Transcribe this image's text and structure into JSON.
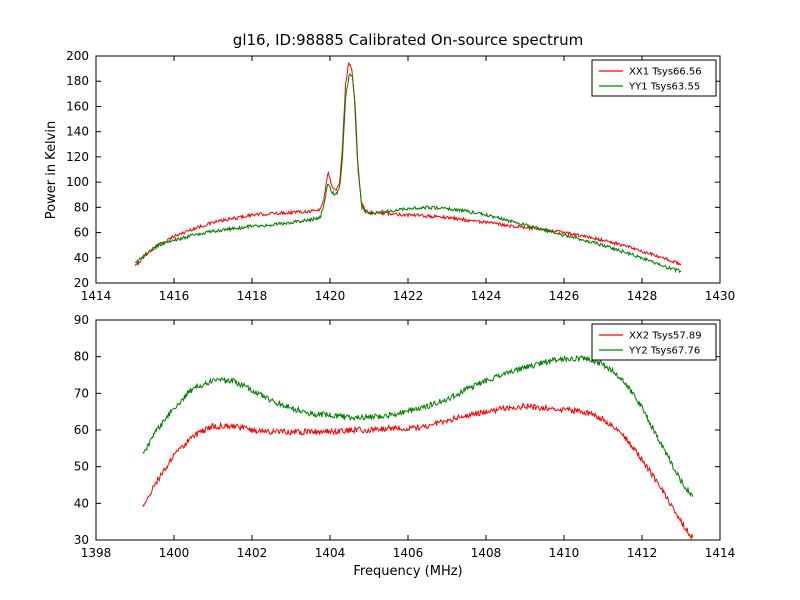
{
  "title": "gl16, ID:98885 Calibrated On-source spectrum",
  "colors": {
    "background": "#ffffff",
    "axis": "#000000",
    "series_red": "#ff0000",
    "series_green": "#008000"
  },
  "chart_data": [
    {
      "type": "line",
      "title": "gl16, ID:98885 Calibrated On-source spectrum",
      "xlabel": "",
      "ylabel": "Power in Kelvin",
      "xlim": [
        1414,
        1430
      ],
      "ylim": [
        20,
        200
      ],
      "xticks": [
        1414,
        1416,
        1418,
        1420,
        1422,
        1424,
        1426,
        1428,
        1430
      ],
      "yticks": [
        20,
        40,
        60,
        80,
        100,
        120,
        140,
        160,
        180,
        200
      ],
      "grid": false,
      "legend_position": "upper right",
      "series": [
        {
          "name": "XX1 Tsys66.56",
          "color": "#ff0000",
          "noise": 1.3,
          "x": [
            1415.0,
            1415.3,
            1415.6,
            1416.0,
            1416.5,
            1417.0,
            1417.5,
            1418.0,
            1418.5,
            1419.0,
            1419.5,
            1419.75,
            1419.85,
            1419.95,
            1420.05,
            1420.15,
            1420.25,
            1420.32,
            1420.4,
            1420.48,
            1420.55,
            1420.62,
            1420.7,
            1420.8,
            1420.9,
            1421.0,
            1421.5,
            1422.0,
            1422.5,
            1423.0,
            1423.5,
            1424.0,
            1424.5,
            1425.0,
            1425.5,
            1426.0,
            1426.5,
            1427.0,
            1427.5,
            1428.0,
            1428.5,
            1429.0
          ],
          "y": [
            33,
            43,
            50,
            57,
            63,
            68,
            71,
            74,
            75,
            76,
            77,
            78,
            88,
            108,
            97,
            93,
            100,
            128,
            178,
            194,
            191,
            170,
            120,
            85,
            78,
            76,
            75,
            74,
            73,
            72,
            70,
            68,
            66,
            64,
            62,
            60,
            57,
            54,
            50,
            45,
            40,
            35
          ]
        },
        {
          "name": "YY1 Tsys63.55",
          "color": "#008000",
          "noise": 1.3,
          "x": [
            1415.0,
            1415.3,
            1415.6,
            1416.0,
            1416.5,
            1417.0,
            1417.5,
            1418.0,
            1418.5,
            1419.0,
            1419.5,
            1419.75,
            1419.85,
            1419.95,
            1420.05,
            1420.15,
            1420.25,
            1420.32,
            1420.4,
            1420.5,
            1420.58,
            1420.65,
            1420.72,
            1420.82,
            1420.92,
            1421.0,
            1421.5,
            1422.0,
            1422.5,
            1423.0,
            1423.5,
            1424.0,
            1424.5,
            1425.0,
            1425.5,
            1426.0,
            1426.5,
            1427.0,
            1427.5,
            1428.0,
            1428.5,
            1429.0
          ],
          "y": [
            35,
            44,
            50,
            54,
            58,
            61,
            63,
            65,
            66,
            68,
            70,
            72,
            82,
            100,
            92,
            90,
            96,
            120,
            168,
            186,
            183,
            160,
            110,
            80,
            76,
            75,
            77,
            79,
            80,
            79,
            77,
            74,
            70,
            66,
            62,
            58,
            54,
            50,
            45,
            40,
            34,
            29
          ]
        }
      ]
    },
    {
      "type": "line",
      "title": "",
      "xlabel": "Frequency (MHz)",
      "ylabel": "",
      "xlim": [
        1398,
        1414
      ],
      "ylim": [
        30,
        90
      ],
      "xticks": [
        1398,
        1400,
        1402,
        1404,
        1406,
        1408,
        1410,
        1412,
        1414
      ],
      "yticks": [
        30,
        40,
        50,
        60,
        70,
        80,
        90
      ],
      "grid": false,
      "legend_position": "upper right",
      "series": [
        {
          "name": "XX2 Tsys57.89",
          "color": "#ff0000",
          "noise": 0.8,
          "x": [
            1399.2,
            1399.5,
            1400.0,
            1400.5,
            1401.0,
            1401.5,
            1402.0,
            1402.5,
            1403.0,
            1403.5,
            1404.0,
            1404.5,
            1405.0,
            1405.5,
            1406.0,
            1406.5,
            1407.0,
            1407.5,
            1408.0,
            1408.5,
            1409.0,
            1409.5,
            1410.0,
            1410.5,
            1411.0,
            1411.5,
            1412.0,
            1412.5,
            1413.0,
            1413.3
          ],
          "y": [
            39,
            45,
            53,
            58.5,
            61,
            61,
            60,
            59.5,
            59.5,
            59.5,
            59.5,
            60,
            60,
            60.5,
            60.5,
            61,
            62.5,
            64,
            65,
            66,
            66.5,
            66,
            65.5,
            65,
            63,
            59,
            52,
            44,
            35,
            30.5
          ]
        },
        {
          "name": "YY2 Tsys67.76",
          "color": "#008000",
          "noise": 0.8,
          "x": [
            1399.2,
            1399.5,
            1400.0,
            1400.5,
            1401.0,
            1401.5,
            1402.0,
            1402.5,
            1403.0,
            1403.5,
            1404.0,
            1404.5,
            1405.0,
            1405.5,
            1406.0,
            1406.5,
            1407.0,
            1407.5,
            1408.0,
            1408.5,
            1409.0,
            1409.5,
            1410.0,
            1410.5,
            1411.0,
            1411.5,
            1412.0,
            1412.5,
            1413.0,
            1413.3
          ],
          "y": [
            53,
            59,
            66,
            71.5,
            73.5,
            73.5,
            71,
            68,
            66,
            64.5,
            64,
            63.5,
            63.5,
            64,
            65,
            66.5,
            68.5,
            71,
            73.5,
            75.5,
            77,
            78.5,
            79.5,
            79.5,
            78,
            74,
            66,
            56,
            46,
            42
          ]
        }
      ]
    }
  ]
}
